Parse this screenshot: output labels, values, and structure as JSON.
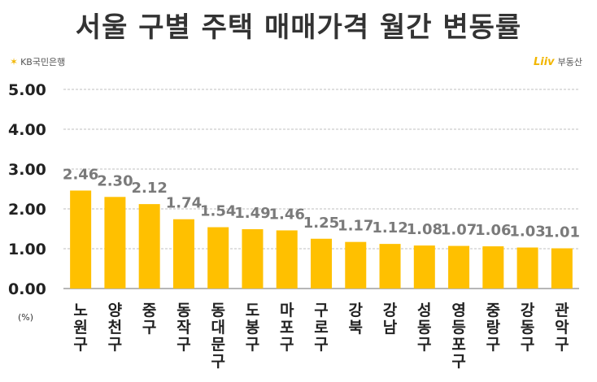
{
  "header": {
    "title": "서울 구별 주택 매매가격 월간 변동률",
    "kb_logo_text": "KB국민은행",
    "liiv_logo_mark": "Liiv",
    "liiv_logo_text": "부동산"
  },
  "chart_data": {
    "type": "bar",
    "title": "서울 구별 주택 매매가격 월간 변동률",
    "unit_label": "(%)",
    "categories": [
      "노원구",
      "양천구",
      "중구",
      "동작구",
      "동대문구",
      "도봉구",
      "마포구",
      "구로구",
      "강북",
      "강남",
      "성동구",
      "영등포구",
      "중랑구",
      "강동구",
      "관악구"
    ],
    "values": [
      2.46,
      2.3,
      2.12,
      1.74,
      1.54,
      1.49,
      1.46,
      1.25,
      1.17,
      1.12,
      1.08,
      1.07,
      1.06,
      1.03,
      1.01
    ],
    "value_labels": [
      "2.46",
      "2.30",
      "2.12",
      "1.74",
      "1.54",
      "1.49",
      "1.46",
      "1.25",
      "1.17",
      "1.12",
      "1.08",
      "1.07",
      "1.06",
      "1.03",
      "1.01"
    ],
    "y_ticks": [
      "0.00",
      "1.00",
      "2.00",
      "3.00",
      "4.00",
      "5.00"
    ],
    "ylim": [
      0,
      5
    ],
    "grid": true,
    "legend": "none",
    "bar_color": "#ffc000",
    "grid_color": "#bfbfbf"
  }
}
